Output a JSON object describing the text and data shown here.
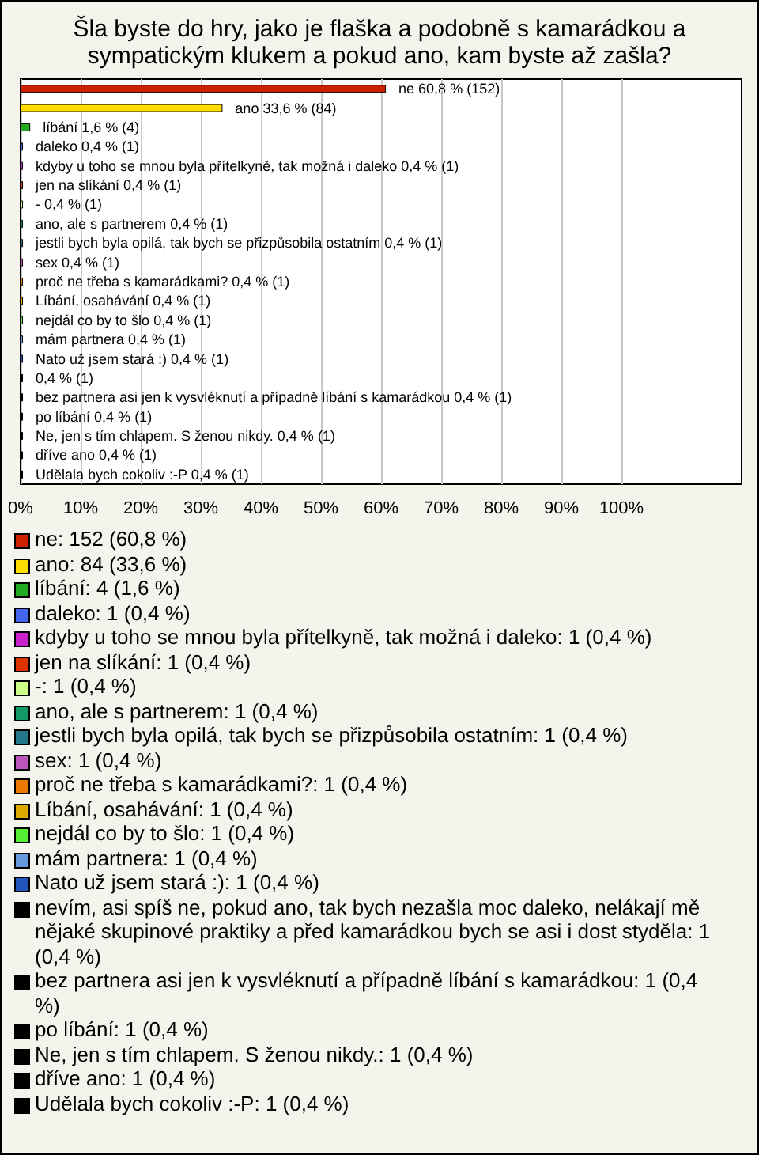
{
  "chart_data": {
    "type": "bar",
    "orientation": "horizontal",
    "title": "Šla byste do hry, jako je flaška a podobně s kamarádkou a sympatickým klukem a pokud ano, kam byste až zašla?",
    "categories": [
      "ne",
      "ano",
      "líbání",
      "daleko",
      "kdyby u toho se mnou byla přítelkyně, tak možná i daleko",
      "jen na slíkání",
      "-",
      "ano, ale s partnerem",
      "jestli bych byla opilá, tak bych se přizpůsobila ostatním",
      "sex",
      "proč ne třeba s kamarádkami?",
      "Líbání, osahávání",
      "nejdál co by to šlo",
      "mám partnera",
      "Nato už jsem stará :)",
      null,
      "bez partnera asi jen k vysvléknutí a případně líbání s kamarádkou",
      "po líbání",
      "Ne, jen s tím chlapem. S ženou nikdy.",
      "dříve ano",
      "Udělala bych cokoliv :-P"
    ],
    "values": [
      60.8,
      33.6,
      1.6,
      0.4,
      0.4,
      0.4,
      0.4,
      0.4,
      0.4,
      0.4,
      0.4,
      0.4,
      0.4,
      0.4,
      0.4,
      0.4,
      0.4,
      0.4,
      0.4,
      0.4,
      0.4
    ],
    "colors": [
      "#cc2200",
      "#ffdd00",
      "#22aa22",
      "#4466ee",
      "#cc22cc",
      "#dd3300",
      "#ccff88",
      "#119966",
      "#227788",
      "#bb55bb",
      "#ee7700",
      "#ddaa00",
      "#55ee33",
      "#6699dd",
      "#2255bb",
      "#000000",
      "#000000",
      "#000000",
      "#000000",
      "#000000",
      "#000000"
    ],
    "value_labels": [
      "60,8 % (152)",
      "33,6 % (84)",
      "1,6 % (4)",
      "0,4 % (1)",
      "0,4 % (1)",
      "0,4 % (1)",
      "0,4 % (1)",
      "0,4 % (1)",
      "0,4 % (1)",
      "0,4 % (1)",
      "0,4 % (1)",
      "0,4 % (1)",
      "0,4 % (1)",
      "0,4 % (1)",
      "0,4 % (1)",
      "0,4 % (1)",
      "0,4 % (1)",
      "0,4 % (1)",
      "0,4 % (1)",
      "0,4 % (1)",
      "0,4 % (1)"
    ],
    "xlim": [
      0,
      120
    ],
    "xticks": [
      {
        "value": 0,
        "label": "0%"
      },
      {
        "value": 10,
        "label": "10%"
      },
      {
        "value": 20,
        "label": "20%"
      },
      {
        "value": 30,
        "label": "30%"
      },
      {
        "value": 40,
        "label": "40%"
      },
      {
        "value": 50,
        "label": "50%"
      },
      {
        "value": 60,
        "label": "60%"
      },
      {
        "value": 70,
        "label": "70%"
      },
      {
        "value": 80,
        "label": "80%"
      },
      {
        "value": 90,
        "label": "90%"
      },
      {
        "value": 100,
        "label": "100%"
      }
    ],
    "grid": "x",
    "tick_labels": "x",
    "annotations": [
      "ne: 152 (60,8 %)",
      "ano: 84 (33,6 %)",
      "líbání: 4 (1,6 %)",
      "daleko: 1 (0,4 %)",
      "kdyby u toho se mnou byla přítelkyně, tak možná i daleko: 1 (0,4 %)",
      "jen na slíkání: 1 (0,4 %)",
      "-: 1 (0,4 %)",
      "ano, ale s partnerem: 1 (0,4 %)",
      "jestli bych byla opilá, tak bych se přizpůsobila ostatním: 1 (0,4 %)",
      "sex: 1 (0,4 %)",
      "proč ne třeba s kamarádkami?: 1 (0,4 %)",
      "Líbání, osahávání: 1 (0,4 %)",
      "nejdál co by to šlo: 1 (0,4 %)",
      "mám partnera: 1 (0,4 %)",
      "Nato už jsem stará :): 1 (0,4 %)",
      "nevím, asi spíš ne, pokud ano, tak bych nezašla moc daleko, nelákají mě nějaké skupinové praktiky a před kamarádkou bych se asi i dost styděla: 1 (0,4 %)",
      "bez partnera asi jen k vysvléknutí a případně líbání s kamarádkou: 1 (0,4 %)",
      "po líbání: 1 (0,4 %)",
      "Ne, jen s tím chlapem. S ženou nikdy.: 1 (0,4 %)",
      "dříve ano: 1 (0,4 %)",
      "Udělala bych cokoliv :-P: 1 (0,4 %)"
    ]
  }
}
